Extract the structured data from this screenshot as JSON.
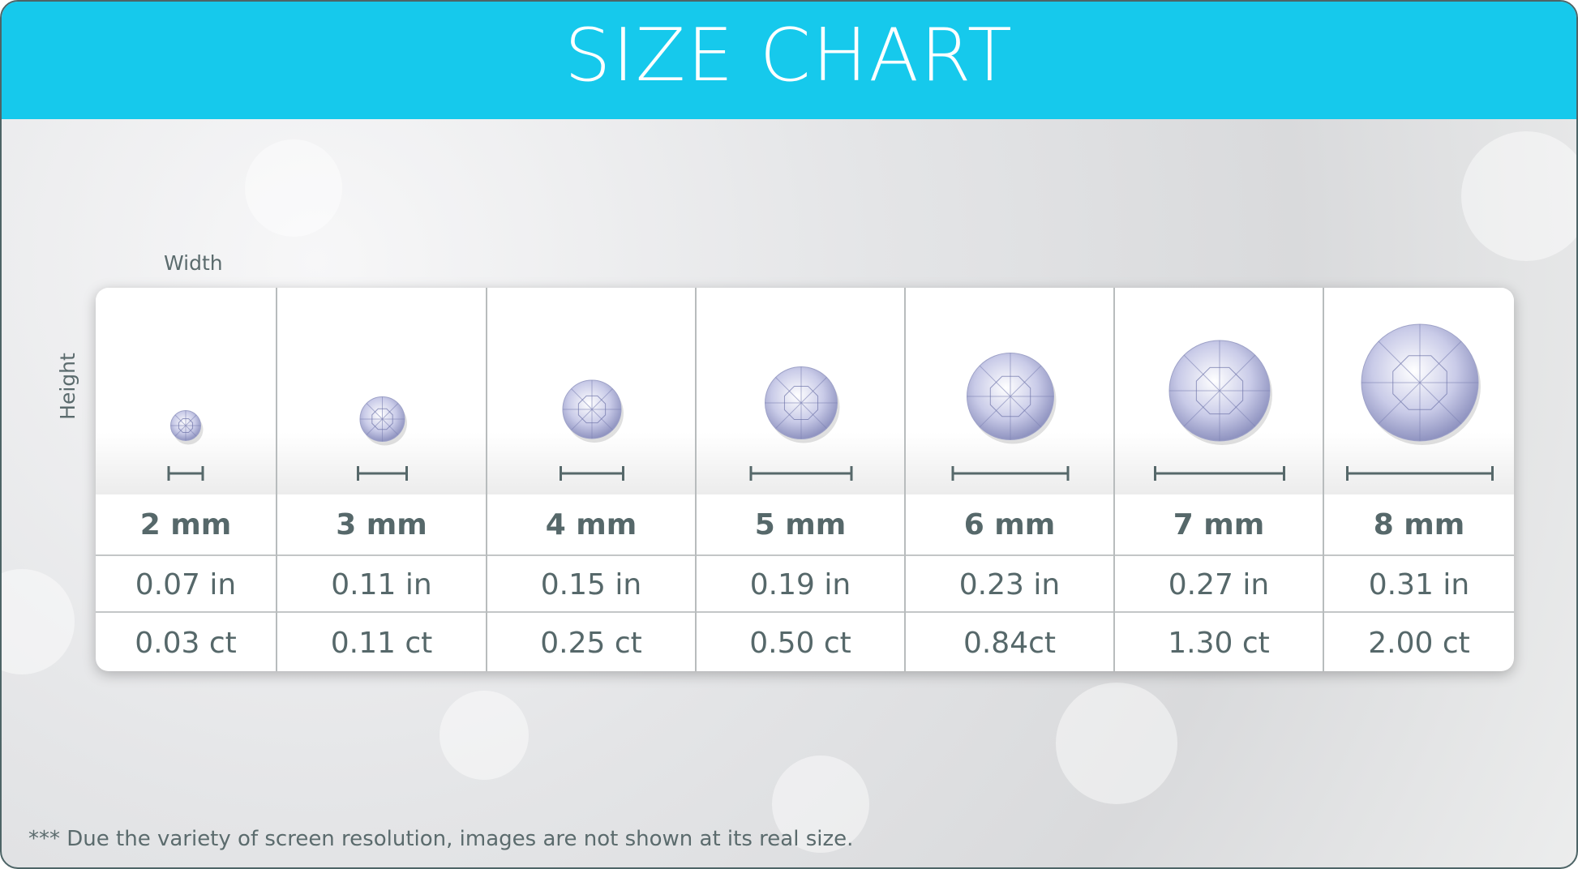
{
  "header": {
    "title": "SIZE CHART",
    "color": "#16c9ec"
  },
  "labels": {
    "width": "Width",
    "height": "Height"
  },
  "columns": [
    {
      "mm": "2 mm",
      "inch": "0.07 in",
      "carat": "0.03 ct"
    },
    {
      "mm": "3 mm",
      "inch": "0.11 in",
      "carat": "0.11 ct"
    },
    {
      "mm": "4 mm",
      "inch": "0.15 in",
      "carat": "0.25 ct"
    },
    {
      "mm": "5 mm",
      "inch": "0.19 in",
      "carat": "0.50 ct"
    },
    {
      "mm": "6 mm",
      "inch": "0.23 in",
      "carat": "0.84ct"
    },
    {
      "mm": "7 mm",
      "inch": "0.27 in",
      "carat": "1.30 ct"
    },
    {
      "mm": "8 mm",
      "inch": "0.31 in",
      "carat": "2.00 ct"
    }
  ],
  "footnote": "*** Due the variety of screen resolution, images are not shown at its real size.",
  "icons": {
    "gem": "round-diamond-icon",
    "scale": "width-scale-bar-icon"
  }
}
